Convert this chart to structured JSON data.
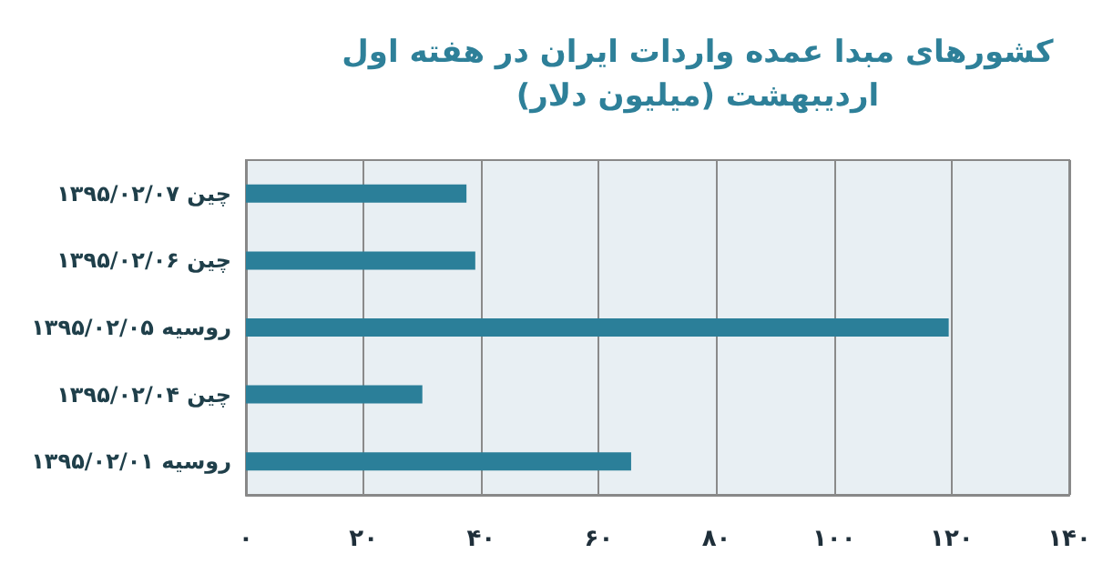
{
  "chart_data": {
    "type": "bar",
    "orientation": "horizontal",
    "title": "کشورهای مبدا عمده واردات ایران در هفته اول\nاردیبهشت (میلیون دلار)",
    "categories": [
      "چین ۱۳۹۵/۰۲/۰۷",
      "چین ۱۳۹۵/۰۲/۰۶",
      "روسیه ۱۳۹۵/۰۲/۰۵",
      "چین ۱۳۹۵/۰۲/۰۴",
      "روسیه ۱۳۹۵/۰۲/۰۱"
    ],
    "values": [
      37.5,
      39,
      119.5,
      30,
      65.5
    ],
    "color": "#2b7f99",
    "xlim": [
      0,
      140
    ],
    "xticks": [
      {
        "value": 0,
        "label": "۰"
      },
      {
        "value": 20,
        "label": "۲۰"
      },
      {
        "value": 40,
        "label": "۴۰"
      },
      {
        "value": 60,
        "label": "۶۰"
      },
      {
        "value": 80,
        "label": "۸۰"
      },
      {
        "value": 100,
        "label": "۱۰۰"
      },
      {
        "value": 120,
        "label": "۱۲۰"
      },
      {
        "value": 140,
        "label": "۱۴۰"
      }
    ],
    "grid": "x"
  }
}
